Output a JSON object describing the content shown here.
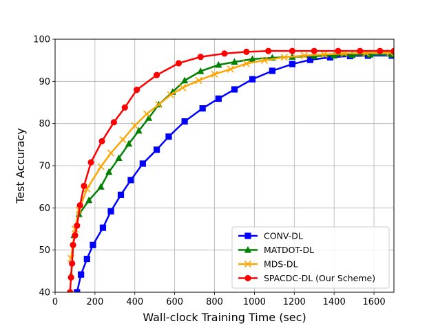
{
  "chart_data": {
    "type": "line",
    "title": "",
    "xlabel": "Wall-clock Training Time (sec)",
    "ylabel": "Test Accuracy",
    "xlim": [
      0,
      1700
    ],
    "ylim": [
      40,
      100
    ],
    "xticks": [
      0,
      200,
      400,
      600,
      800,
      1000,
      1200,
      1400,
      1600
    ],
    "yticks": [
      40,
      50,
      60,
      70,
      80,
      90,
      100
    ],
    "grid": true,
    "legend_position": "lower-right",
    "series": [
      {
        "name": "CONV-DL",
        "color": "#0000ff",
        "marker": "square",
        "x": [
          110,
          130,
          160,
          190,
          240,
          280,
          330,
          380,
          440,
          510,
          570,
          650,
          740,
          820,
          900,
          990,
          1090,
          1190,
          1280,
          1380,
          1480,
          1570,
          1690
        ],
        "y": [
          40.0,
          44.2,
          47.9,
          51.2,
          55.3,
          59.2,
          63.1,
          66.6,
          70.5,
          73.8,
          76.9,
          80.5,
          83.6,
          85.9,
          88.1,
          90.5,
          92.5,
          94.1,
          95.1,
          95.7,
          96.0,
          96.1,
          96.1
        ]
      },
      {
        "name": "MATDOT-DL",
        "color": "#008000",
        "marker": "triangle",
        "x": [
          80,
          95,
          120,
          170,
          230,
          270,
          320,
          370,
          420,
          470,
          520,
          590,
          650,
          730,
          820,
          900,
          990,
          1090,
          1190,
          1300,
          1400,
          1490,
          1580,
          1690
        ],
        "y": [
          44.0,
          53.5,
          58.5,
          61.8,
          65.0,
          68.5,
          71.8,
          75.2,
          78.3,
          81.3,
          84.5,
          87.5,
          90.2,
          92.4,
          93.9,
          94.6,
          95.3,
          95.6,
          95.8,
          96.0,
          96.1,
          96.2,
          96.3,
          96.3
        ]
      },
      {
        "name": "MDS-DL",
        "color": "#ffa500",
        "marker": "x",
        "x": [
          80,
          100,
          120,
          160,
          230,
          280,
          340,
          400,
          460,
          520,
          580,
          640,
          720,
          800,
          880,
          960,
          1050,
          1150,
          1250,
          1350,
          1450,
          1560,
          1680
        ],
        "y": [
          48.0,
          55.0,
          59.5,
          64.5,
          69.8,
          73.0,
          76.2,
          79.5,
          82.3,
          84.5,
          86.8,
          88.5,
          90.2,
          91.7,
          92.9,
          94.2,
          95.0,
          95.7,
          96.1,
          96.4,
          96.6,
          96.7,
          96.8
        ]
      },
      {
        "name": "SPACDC-DL (Our Scheme)",
        "color": "#ff0000",
        "marker": "circle",
        "x": [
          75,
          80,
          85,
          90,
          100,
          110,
          125,
          145,
          180,
          235,
          295,
          350,
          410,
          510,
          620,
          730,
          850,
          960,
          1070,
          1190,
          1300,
          1420,
          1530,
          1630,
          1700
        ],
        "y": [
          40.0,
          43.5,
          46.8,
          51.2,
          53.5,
          55.8,
          60.6,
          65.2,
          70.8,
          75.8,
          80.3,
          83.8,
          88.0,
          91.5,
          94.3,
          95.8,
          96.6,
          97.0,
          97.2,
          97.2,
          97.2,
          97.2,
          97.2,
          97.2,
          97.2
        ]
      }
    ]
  }
}
